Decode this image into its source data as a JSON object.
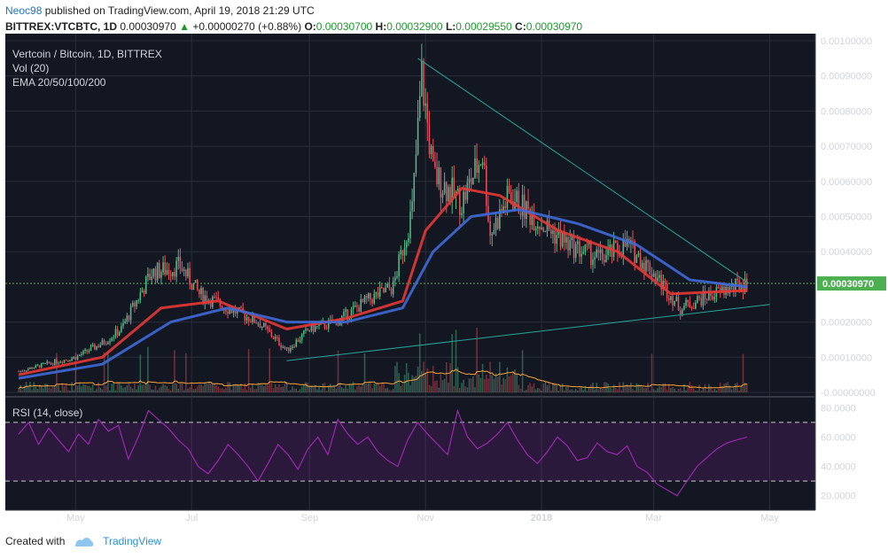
{
  "header": {
    "author": "Neoc98",
    "published": "published on TradingView.com, April 19, 2018 21:29 UTC",
    "symbol": "BITTREX:VTCBTC, 1D",
    "last": "0.00030970",
    "arrow": "▲",
    "change": "+0.00000270 (+0.88%)",
    "o_label": "O:",
    "o": "0.00030700",
    "h_label": "H:",
    "h": "0.00032900",
    "l_label": "L:",
    "l": "0.00029550",
    "c_label": "C:",
    "c": "0.00030970"
  },
  "legend": {
    "title": "Vertcoin / Bitcoin, 1D, BITTREX",
    "vol": "Vol (20)",
    "ema": "EMA 20/50/100/200",
    "rsi": "RSI (14, close)"
  },
  "footer": {
    "created": "Created with",
    "brand": "TradingView"
  },
  "colors": {
    "background": "#131722",
    "grid": "#2a2e39",
    "candle_up": "#53b987",
    "candle_down": "#eb4d5c",
    "ema20": "#e53935",
    "ema50": "#3f6ad8",
    "trendline": "#26a69a",
    "rsi": "#9c27b0",
    "volume_ma": "#f7a535",
    "price_line": "#4caf50"
  },
  "chart_data": [
    {
      "type": "line",
      "title": "Vertcoin / Bitcoin, 1D, BITTREX",
      "x_ticks": [
        "May",
        "Jul",
        "Sep",
        "Nov",
        "2018",
        "Mar",
        "May"
      ],
      "y_ticks": [
        "0.00100000",
        "0.00090000",
        "0.00080000",
        "0.00070000",
        "0.00060000",
        "0.00050000",
        "0.00040000",
        "0.00030970",
        "0.00020000",
        "0.00010000",
        "-0.00000000"
      ],
      "ylim": [
        0.0,
        0.001
      ],
      "last_price": 0.0003097,
      "series": [
        {
          "name": "VTCBTC",
          "x": [
            "2017-04-01",
            "2017-04-15",
            "2017-05-01",
            "2017-05-15",
            "2017-05-25",
            "2017-06-10",
            "2017-06-25",
            "2017-07-05",
            "2017-07-20",
            "2017-08-05",
            "2017-08-20",
            "2017-09-01",
            "2017-09-15",
            "2017-10-01",
            "2017-10-15",
            "2017-10-25",
            "2017-10-30",
            "2017-11-05",
            "2017-11-20",
            "2017-12-01",
            "2017-12-05",
            "2017-12-15",
            "2018-01-01",
            "2018-01-15",
            "2018-02-01",
            "2018-02-15",
            "2018-03-01",
            "2018-03-15",
            "2018-04-01",
            "2018-04-19"
          ],
          "values": [
            6e-05,
            8e-05,
            0.0001,
            0.00014,
            0.00018,
            0.00034,
            0.00036,
            0.00028,
            0.00024,
            0.0002,
            0.00012,
            0.00018,
            0.0002,
            0.00026,
            0.0003,
            0.00052,
            0.0009,
            0.00062,
            0.00054,
            0.00068,
            0.00045,
            0.00056,
            0.00048,
            0.00042,
            0.00038,
            0.00042,
            0.00034,
            0.00024,
            0.00028,
            0.00031
          ]
        },
        {
          "name": "EMA 20",
          "x": [
            "2017-04-01",
            "2017-05-15",
            "2017-06-15",
            "2017-07-15",
            "2017-08-20",
            "2017-09-20",
            "2017-10-20",
            "2017-11-01",
            "2017-11-20",
            "2017-12-10",
            "2018-01-10",
            "2018-02-10",
            "2018-03-10",
            "2018-04-19"
          ],
          "values": [
            5e-05,
            0.0001,
            0.00024,
            0.00026,
            0.00018,
            0.00021,
            0.00026,
            0.00046,
            0.00058,
            0.00056,
            0.00046,
            0.0004,
            0.00028,
            0.00029
          ]
        },
        {
          "name": "EMA 50",
          "x": [
            "2017-04-01",
            "2017-05-15",
            "2017-06-20",
            "2017-07-20",
            "2017-08-20",
            "2017-09-20",
            "2017-10-20",
            "2017-11-05",
            "2017-11-25",
            "2017-12-20",
            "2018-01-20",
            "2018-02-20",
            "2018-03-20",
            "2018-04-19"
          ],
          "values": [
            4e-05,
            8e-05,
            0.0002,
            0.00024,
            0.0002,
            0.0002,
            0.00024,
            0.0004,
            0.0005,
            0.00052,
            0.00048,
            0.00042,
            0.00032,
            0.0003
          ]
        },
        {
          "name": "Triangle upper",
          "x": [
            "2017-10-28",
            "2018-04-20"
          ],
          "values": [
            0.00095,
            0.00031
          ]
        },
        {
          "name": "Triangle lower",
          "x": [
            "2017-08-20",
            "2018-05-01"
          ],
          "values": [
            9e-05,
            0.00025
          ]
        }
      ]
    },
    {
      "type": "line",
      "title": "RSI (14, close)",
      "y_ticks": [
        "80.0000",
        "60.0000",
        "40.0000",
        "20.0000"
      ],
      "ylim": [
        15,
        85
      ],
      "bands": [
        70,
        30
      ],
      "series": [
        {
          "name": "RSI",
          "values": [
            62,
            70,
            55,
            66,
            58,
            50,
            62,
            55,
            72,
            64,
            68,
            45,
            60,
            78,
            72,
            66,
            58,
            52,
            40,
            35,
            44,
            55,
            48,
            40,
            30,
            42,
            55,
            48,
            38,
            52,
            60,
            48,
            72,
            62,
            55,
            60,
            50,
            44,
            40,
            58,
            70,
            62,
            55,
            48,
            78,
            60,
            52,
            56,
            62,
            70,
            58,
            48,
            42,
            50,
            60,
            54,
            44,
            46,
            56,
            50,
            48,
            54,
            40,
            36,
            28,
            24,
            20,
            30,
            40,
            46,
            52,
            56,
            58,
            60
          ]
        }
      ]
    }
  ]
}
